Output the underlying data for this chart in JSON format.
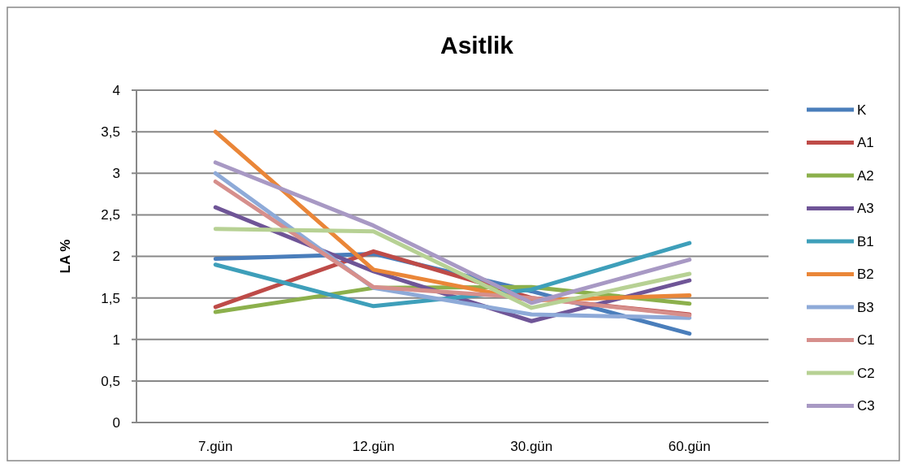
{
  "chart_data": {
    "type": "line",
    "title": "Asitlik",
    "ylabel": "LA %",
    "categories": [
      "7.gün",
      "12.gün",
      "30.gün",
      "60.gün"
    ],
    "ylim": [
      0,
      4
    ],
    "yticks": [
      {
        "value": 0,
        "label": "0"
      },
      {
        "value": 0.5,
        "label": "0,5"
      },
      {
        "value": 1,
        "label": "1"
      },
      {
        "value": 1.5,
        "label": "1,5"
      },
      {
        "value": 2,
        "label": "2"
      },
      {
        "value": 2.5,
        "label": "2,5"
      },
      {
        "value": 3,
        "label": "3"
      },
      {
        "value": 3.5,
        "label": "3,5"
      },
      {
        "value": 4,
        "label": "4"
      }
    ],
    "grid": "y",
    "legend": "right",
    "marker": "none",
    "series": [
      {
        "name": "K",
        "color": "#4a7ebb",
        "values": [
          1.97,
          2.03,
          1.58,
          1.07
        ]
      },
      {
        "name": "A1",
        "color": "#be4b48",
        "values": [
          1.39,
          2.06,
          1.5,
          1.3
        ]
      },
      {
        "name": "A2",
        "color": "#8cb04c",
        "values": [
          1.33,
          1.62,
          1.63,
          1.43
        ]
      },
      {
        "name": "A3",
        "color": "#6f5597",
        "values": [
          2.59,
          1.82,
          1.22,
          1.71
        ]
      },
      {
        "name": "B1",
        "color": "#3e9fba",
        "values": [
          1.9,
          1.4,
          1.6,
          2.16
        ]
      },
      {
        "name": "B2",
        "color": "#ea8638",
        "values": [
          3.5,
          1.84,
          1.47,
          1.53
        ]
      },
      {
        "name": "B3",
        "color": "#8eaad8",
        "values": [
          3.0,
          1.62,
          1.3,
          1.26
        ]
      },
      {
        "name": "C1",
        "color": "#d68f8c",
        "values": [
          2.9,
          1.63,
          1.5,
          1.29
        ]
      },
      {
        "name": "C2",
        "color": "#b7d194",
        "values": [
          2.33,
          2.3,
          1.38,
          1.79
        ]
      },
      {
        "name": "C3",
        "color": "#a899c4",
        "values": [
          3.13,
          2.37,
          1.44,
          1.96
        ]
      }
    ]
  }
}
